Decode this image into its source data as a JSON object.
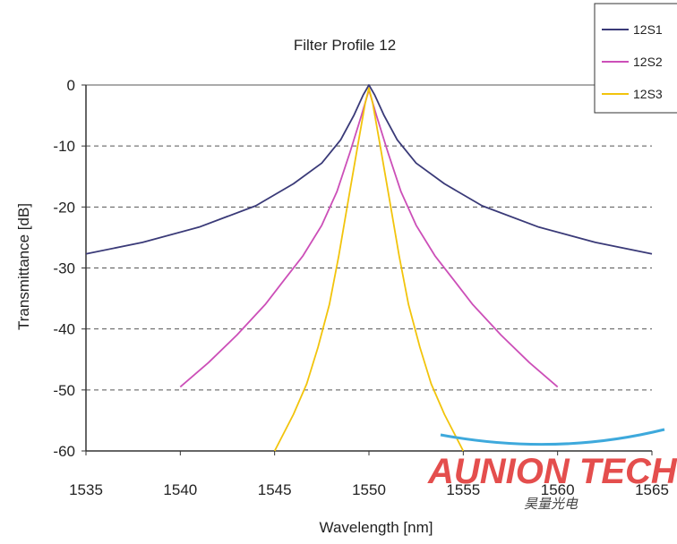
{
  "chart_data": {
    "type": "line",
    "title": "Filter Profile 12",
    "xlabel": "Wavelength [nm]",
    "ylabel": "Transmittance [dB]",
    "xlim": [
      1535,
      1565
    ],
    "ylim": [
      -60,
      0
    ],
    "xticks": [
      1535,
      1540,
      1545,
      1550,
      1555,
      1560,
      1565
    ],
    "yticks": [
      0,
      -10,
      -20,
      -30,
      -40,
      -50,
      -60
    ],
    "grid": "horizontal-dashed",
    "legend": "top-right",
    "series": [
      {
        "name": "12S1",
        "color": "#3a3a78",
        "x": [
          1535,
          1538,
          1541,
          1544,
          1546,
          1547.5,
          1548.5,
          1549.2,
          1549.7,
          1550,
          1550.3,
          1550.8,
          1551.5,
          1552.5,
          1554,
          1556,
          1559,
          1562,
          1565
        ],
        "y": [
          -27.7,
          -25.8,
          -23.3,
          -19.8,
          -16.2,
          -12.8,
          -9.0,
          -5.0,
          -1.6,
          0,
          -1.6,
          -5.0,
          -9.0,
          -12.8,
          -16.2,
          -19.8,
          -23.3,
          -25.8,
          -27.7
        ]
      },
      {
        "name": "12S2",
        "color": "#cc4fb8",
        "x": [
          1540,
          1541.5,
          1543,
          1544.5,
          1545.5,
          1546.5,
          1547.5,
          1548.3,
          1549,
          1549.6,
          1550,
          1550.4,
          1551,
          1551.7,
          1552.5,
          1553.5,
          1554.5,
          1555.5,
          1557,
          1558.5,
          1560
        ],
        "y": [
          -49.5,
          -45.5,
          -41.0,
          -36.0,
          -32.0,
          -28.0,
          -23.0,
          -17.5,
          -11.0,
          -5.0,
          -0.8,
          -5.0,
          -11.0,
          -17.5,
          -23.0,
          -28.0,
          -32.0,
          -36.0,
          -41.0,
          -45.5,
          -49.5
        ]
      },
      {
        "name": "12S3",
        "color": "#f2c40c",
        "x": [
          1545,
          1546,
          1546.7,
          1547.3,
          1547.9,
          1548.4,
          1548.9,
          1549.4,
          1549.8,
          1550,
          1550.2,
          1550.6,
          1551.1,
          1551.6,
          1552.1,
          1552.7,
          1553.3,
          1554,
          1555
        ],
        "y": [
          -60,
          -54,
          -49,
          -43,
          -36,
          -28,
          -19,
          -10,
          -3,
          -0.5,
          -3,
          -10,
          -19,
          -28,
          -36,
          -43,
          -49,
          -54,
          -60
        ]
      }
    ],
    "watermark": {
      "brand": "AUNION TECH",
      "sub": "昊量光电"
    }
  }
}
